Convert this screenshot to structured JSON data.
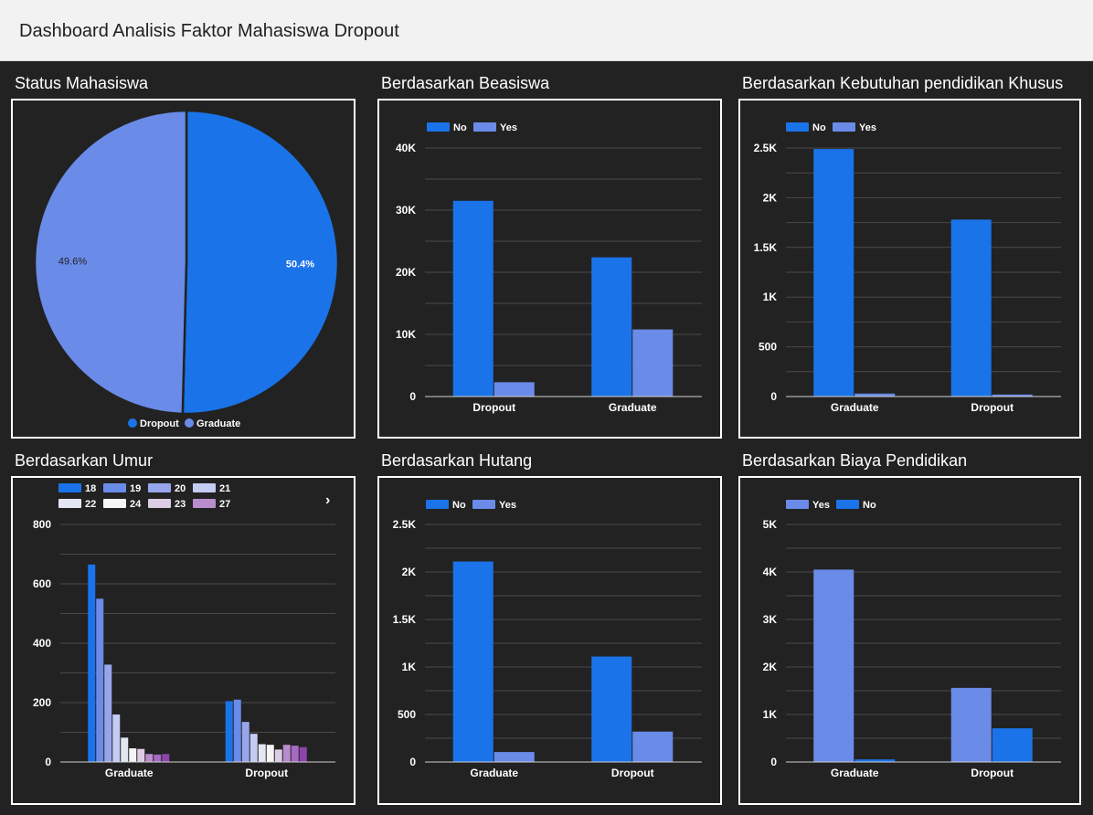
{
  "header": {
    "title": "Dashboard Analisis Faktor Mahasiswa Dropout"
  },
  "colors": {
    "dark_blue": "#1a73e8",
    "light_blue": "#6a8be8",
    "background": "#222222",
    "grid": "#4a4a4a"
  },
  "chart_data": [
    {
      "id": "status",
      "type": "pie",
      "title": "Status Mahasiswa",
      "slices": [
        {
          "label": "Dropout",
          "value": 50.4,
          "display": "50.4%",
          "color": "#1a73e8"
        },
        {
          "label": "Graduate",
          "value": 49.6,
          "display": "49.6%",
          "color": "#6a8be8"
        }
      ],
      "legend_position": "bottom"
    },
    {
      "id": "beasiswa",
      "type": "bar",
      "title": "Berdasarkan Beasiswa",
      "categories": [
        "Dropout",
        "Graduate"
      ],
      "series": [
        {
          "name": "No",
          "color": "#1a73e8",
          "values": [
            31500,
            22400
          ]
        },
        {
          "name": "Yes",
          "color": "#6a8be8",
          "values": [
            2300,
            10800
          ]
        }
      ],
      "ylim": [
        0,
        40000
      ],
      "yticks": [
        0,
        10000,
        20000,
        30000,
        40000
      ],
      "ytick_labels": [
        "0",
        "10K",
        "20K",
        "30K",
        "40K"
      ],
      "grid_minor": true,
      "legend_position": "top-left"
    },
    {
      "id": "kebutuhan",
      "type": "bar",
      "title": "Berdasarkan Kebutuhan pendidikan Khusus",
      "categories": [
        "Graduate",
        "Dropout"
      ],
      "series": [
        {
          "name": "No",
          "color": "#1a73e8",
          "values": [
            2490,
            1780
          ]
        },
        {
          "name": "Yes",
          "color": "#6a8be8",
          "values": [
            30,
            20
          ]
        }
      ],
      "ylim": [
        0,
        2500
      ],
      "yticks": [
        0,
        500,
        1000,
        1500,
        2000,
        2500
      ],
      "ytick_labels": [
        "0",
        "500",
        "1K",
        "1.5K",
        "2K",
        "2.5K"
      ],
      "grid_minor": true,
      "legend_position": "top-left"
    },
    {
      "id": "umur",
      "type": "bar",
      "title": "Berdasarkan Umur",
      "categories": [
        "Graduate",
        "Dropout"
      ],
      "series": [
        {
          "name": "18",
          "color": "#1a73e8",
          "values": [
            665,
            205
          ]
        },
        {
          "name": "19",
          "color": "#6a8be8",
          "values": [
            550,
            210
          ]
        },
        {
          "name": "20",
          "color": "#97a6ec",
          "values": [
            328,
            135
          ]
        },
        {
          "name": "21",
          "color": "#c4ccf4",
          "values": [
            160,
            95
          ]
        },
        {
          "name": "22",
          "color": "#e4e6f2",
          "values": [
            82,
            60
          ]
        },
        {
          "name": "24",
          "color": "#f5f5f5",
          "values": [
            46,
            58
          ]
        },
        {
          "name": "23",
          "color": "#dccde4",
          "values": [
            44,
            42
          ]
        },
        {
          "name": "27",
          "color": "#b98ccd",
          "values": [
            27,
            58
          ]
        },
        {
          "name": "",
          "color": "#a56bc2",
          "values": [
            25,
            55
          ]
        },
        {
          "name": "",
          "color": "#8e44ad",
          "values": [
            27,
            50
          ]
        }
      ],
      "ylim": [
        0,
        800
      ],
      "yticks": [
        0,
        200,
        400,
        600,
        800
      ],
      "ytick_labels": [
        "0",
        "200",
        "400",
        "600",
        "800"
      ],
      "grid_minor": true,
      "legend_position": "top-left",
      "legend_has_more": true
    },
    {
      "id": "hutang",
      "type": "bar",
      "title": "Berdasarkan Hutang",
      "categories": [
        "Graduate",
        "Dropout"
      ],
      "series": [
        {
          "name": "No",
          "color": "#1a73e8",
          "values": [
            2110,
            1110
          ]
        },
        {
          "name": "Yes",
          "color": "#6a8be8",
          "values": [
            105,
            320
          ]
        }
      ],
      "ylim": [
        0,
        2500
      ],
      "yticks": [
        0,
        500,
        1000,
        1500,
        2000,
        2500
      ],
      "ytick_labels": [
        "0",
        "500",
        "1K",
        "1.5K",
        "2K",
        "2.5K"
      ],
      "grid_minor": true,
      "legend_position": "top-left"
    },
    {
      "id": "biaya",
      "type": "bar",
      "title": "Berdasarkan Biaya Pendidikan",
      "categories": [
        "Graduate",
        "Dropout"
      ],
      "series": [
        {
          "name": "Yes",
          "color": "#6a8be8",
          "values": [
            4050,
            1560
          ]
        },
        {
          "name": "No",
          "color": "#1a73e8",
          "values": [
            55,
            710
          ]
        }
      ],
      "ylim": [
        0,
        5000
      ],
      "yticks": [
        0,
        1000,
        2000,
        3000,
        4000,
        5000
      ],
      "ytick_labels": [
        "0",
        "1K",
        "2K",
        "3K",
        "4K",
        "5K"
      ],
      "grid_minor": true,
      "legend_position": "top-left"
    }
  ]
}
